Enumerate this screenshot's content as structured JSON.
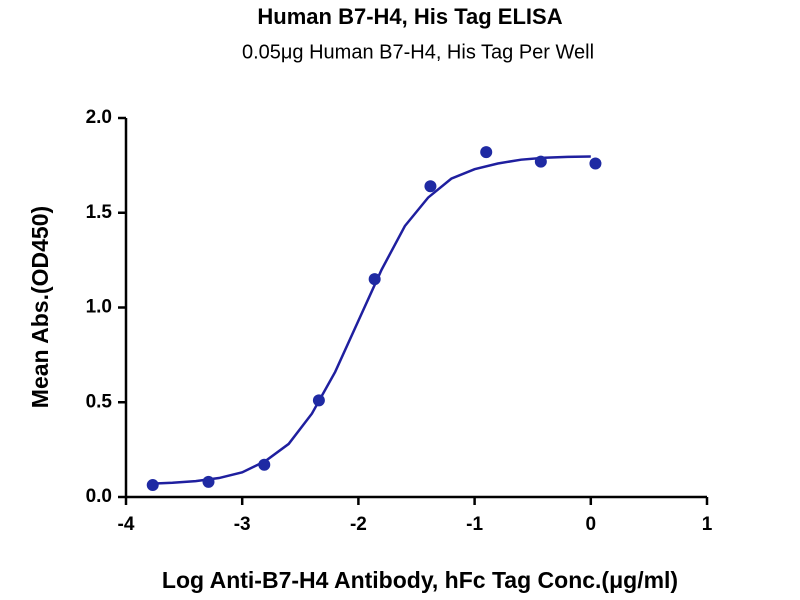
{
  "chart_data": {
    "type": "scatter",
    "title": "Human B7-H4, His Tag ELISA",
    "subtitle": "0.05μg Human B7-H4, His Tag Per Well",
    "x_label": "Log Anti-B7-H4 Antibody, hFc Tag Conc.(μg/ml)",
    "y_label": "Mean Abs.(OD450)",
    "points": {
      "color": "#1f2aa3",
      "x": [
        -3.77,
        -3.29,
        -2.81,
        -2.34,
        -1.86,
        -1.38,
        -0.9,
        -0.43,
        0.04
      ],
      "values": [
        0.063,
        0.08,
        0.17,
        0.51,
        1.15,
        1.64,
        1.82,
        1.77,
        1.76
      ]
    },
    "curve": {
      "color": "#1f1f9f",
      "x": [
        -3.8,
        -3.6,
        -3.4,
        -3.2,
        -3.0,
        -2.8,
        -2.6,
        -2.4,
        -2.2,
        -2.0,
        -1.8,
        -1.6,
        -1.4,
        -1.2,
        -1.0,
        -0.8,
        -0.6,
        -0.4,
        -0.2,
        0.0
      ],
      "values": [
        0.07,
        0.075,
        0.084,
        0.1,
        0.13,
        0.19,
        0.28,
        0.44,
        0.66,
        0.93,
        1.2,
        1.43,
        1.58,
        1.68,
        1.73,
        1.76,
        1.78,
        1.79,
        1.795,
        1.797
      ]
    },
    "xlim": [
      -4,
      1
    ],
    "xticks": [
      -4,
      -3,
      -2,
      -1,
      0,
      1
    ],
    "ylim": [
      0,
      2
    ],
    "yticks": [
      {
        "value": 0,
        "label": "0.0"
      },
      {
        "value": 0.5,
        "label": "0.5"
      },
      {
        "value": 1,
        "label": "1.0"
      },
      {
        "value": 1.5,
        "label": "1.5"
      },
      {
        "value": 2,
        "label": "2.0"
      }
    ]
  }
}
